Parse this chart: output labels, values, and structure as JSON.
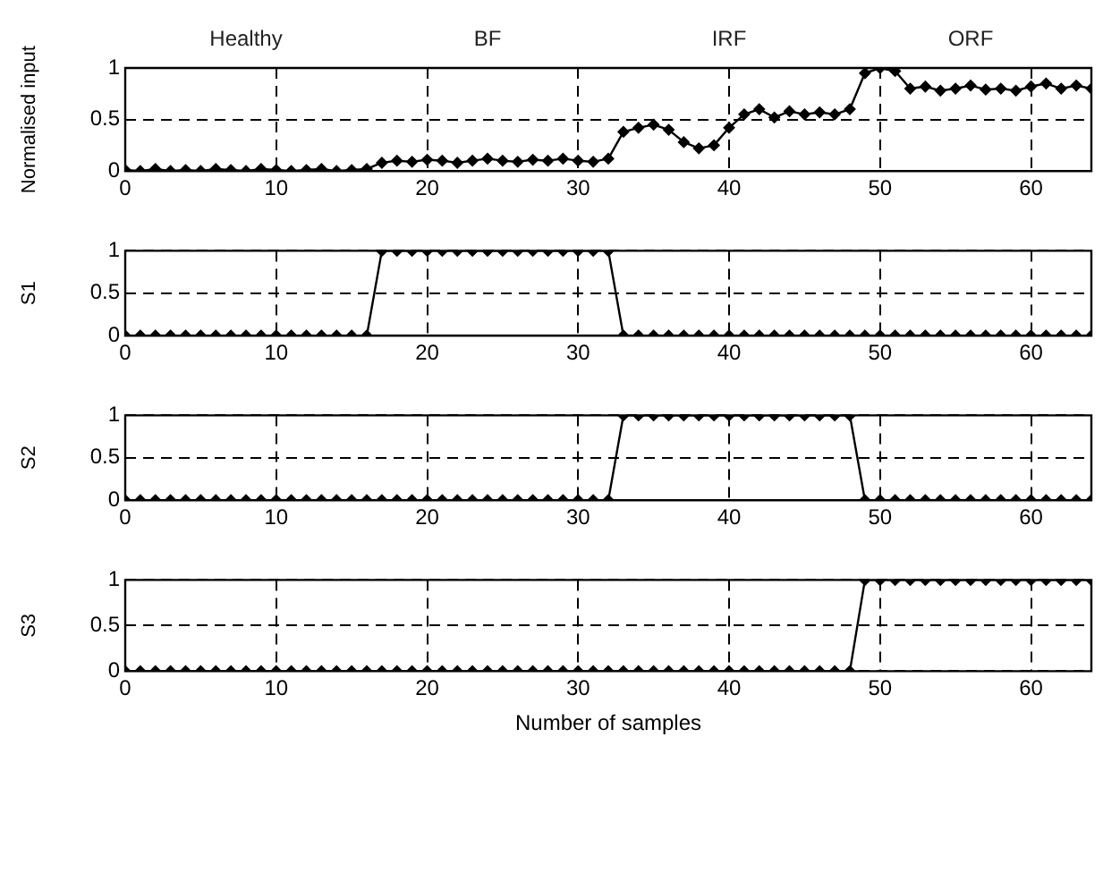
{
  "chart_data": [
    {
      "type": "line",
      "ylabel": "Normalised input",
      "annotations": [
        "Healthy",
        "BF",
        "IRF",
        "ORF"
      ],
      "x": [
        0,
        1,
        2,
        3,
        4,
        5,
        6,
        7,
        8,
        9,
        10,
        11,
        12,
        13,
        14,
        15,
        16,
        17,
        18,
        19,
        20,
        21,
        22,
        23,
        24,
        25,
        26,
        27,
        28,
        29,
        30,
        31,
        32,
        33,
        34,
        35,
        36,
        37,
        38,
        39,
        40,
        41,
        42,
        43,
        44,
        45,
        46,
        47,
        48,
        49,
        50,
        51,
        52,
        53,
        54,
        55,
        56,
        57,
        58,
        59,
        60,
        61,
        62,
        63,
        64
      ],
      "series": [
        {
          "color": "#000000",
          "values": [
            0.01,
            0,
            0.02,
            0,
            0.01,
            0,
            0.02,
            0.01,
            0,
            0.02,
            0.01,
            0,
            0.01,
            0.02,
            0,
            0.01,
            0.02,
            0.08,
            0.1,
            0.09,
            0.11,
            0.1,
            0.08,
            0.1,
            0.12,
            0.1,
            0.09,
            0.11,
            0.1,
            0.12,
            0.1,
            0.09,
            0.12,
            0.38,
            0.42,
            0.45,
            0.4,
            0.28,
            0.22,
            0.25,
            0.42,
            0.55,
            0.6,
            0.52,
            0.58,
            0.55,
            0.57,
            0.55,
            0.6,
            0.95,
            1.0,
            0.97,
            0.8,
            0.82,
            0.78,
            0.8,
            0.83,
            0.79,
            0.8,
            0.78,
            0.82,
            0.85,
            0.8,
            0.83,
            0.8
          ]
        }
      ],
      "xlim": [
        0,
        64
      ],
      "xticks": [
        0,
        10,
        20,
        30,
        40,
        50,
        60
      ],
      "ylim": [
        0,
        1
      ],
      "yticks": [
        0,
        0.5,
        1
      ],
      "grid": true,
      "marker": "diamond"
    },
    {
      "type": "line",
      "ylabel": "S1",
      "x": [
        0,
        1,
        2,
        3,
        4,
        5,
        6,
        7,
        8,
        9,
        10,
        11,
        12,
        13,
        14,
        15,
        16,
        17,
        18,
        19,
        20,
        21,
        22,
        23,
        24,
        25,
        26,
        27,
        28,
        29,
        30,
        31,
        32,
        33,
        34,
        35,
        36,
        37,
        38,
        39,
        40,
        41,
        42,
        43,
        44,
        45,
        46,
        47,
        48,
        49,
        50,
        51,
        52,
        53,
        54,
        55,
        56,
        57,
        58,
        59,
        60,
        61,
        62,
        63,
        64
      ],
      "series": [
        {
          "color": "#000000",
          "values": [
            0,
            0,
            0,
            0,
            0,
            0,
            0,
            0,
            0,
            0,
            0,
            0,
            0,
            0,
            0,
            0,
            0,
            1,
            1,
            1,
            1,
            1,
            1,
            1,
            1,
            1,
            1,
            1,
            1,
            1,
            1,
            1,
            1,
            0,
            0,
            0,
            0,
            0,
            0,
            0,
            0,
            0,
            0,
            0,
            0,
            0,
            0,
            0,
            0,
            0,
            0,
            0,
            0,
            0,
            0,
            0,
            0,
            0,
            0,
            0,
            0,
            0,
            0,
            0,
            0
          ]
        }
      ],
      "xlim": [
        0,
        64
      ],
      "xticks": [
        0,
        10,
        20,
        30,
        40,
        50,
        60
      ],
      "ylim": [
        0,
        1
      ],
      "yticks": [
        0,
        0.5,
        1
      ],
      "grid": true,
      "marker": "diamond"
    },
    {
      "type": "line",
      "ylabel": "S2",
      "x": [
        0,
        1,
        2,
        3,
        4,
        5,
        6,
        7,
        8,
        9,
        10,
        11,
        12,
        13,
        14,
        15,
        16,
        17,
        18,
        19,
        20,
        21,
        22,
        23,
        24,
        25,
        26,
        27,
        28,
        29,
        30,
        31,
        32,
        33,
        34,
        35,
        36,
        37,
        38,
        39,
        40,
        41,
        42,
        43,
        44,
        45,
        46,
        47,
        48,
        49,
        50,
        51,
        52,
        53,
        54,
        55,
        56,
        57,
        58,
        59,
        60,
        61,
        62,
        63,
        64
      ],
      "series": [
        {
          "color": "#000000",
          "values": [
            0,
            0,
            0,
            0,
            0,
            0,
            0,
            0,
            0,
            0,
            0,
            0,
            0,
            0,
            0,
            0,
            0,
            0,
            0,
            0,
            0,
            0,
            0,
            0,
            0,
            0,
            0,
            0,
            0,
            0,
            0,
            0,
            0,
            1,
            1,
            1,
            1,
            1,
            1,
            1,
            1,
            1,
            1,
            1,
            1,
            1,
            1,
            1,
            1,
            0,
            0,
            0,
            0,
            0,
            0,
            0,
            0,
            0,
            0,
            0,
            0,
            0,
            0,
            0,
            0
          ]
        }
      ],
      "xlim": [
        0,
        64
      ],
      "xticks": [
        0,
        10,
        20,
        30,
        40,
        50,
        60
      ],
      "ylim": [
        0,
        1
      ],
      "yticks": [
        0,
        0.5,
        1
      ],
      "grid": true,
      "marker": "diamond"
    },
    {
      "type": "line",
      "ylabel": "S3",
      "xlabel": "Number of samples",
      "x": [
        0,
        1,
        2,
        3,
        4,
        5,
        6,
        7,
        8,
        9,
        10,
        11,
        12,
        13,
        14,
        15,
        16,
        17,
        18,
        19,
        20,
        21,
        22,
        23,
        24,
        25,
        26,
        27,
        28,
        29,
        30,
        31,
        32,
        33,
        34,
        35,
        36,
        37,
        38,
        39,
        40,
        41,
        42,
        43,
        44,
        45,
        46,
        47,
        48,
        49,
        50,
        51,
        52,
        53,
        54,
        55,
        56,
        57,
        58,
        59,
        60,
        61,
        62,
        63,
        64
      ],
      "series": [
        {
          "color": "#000000",
          "values": [
            0,
            0,
            0,
            0,
            0,
            0,
            0,
            0,
            0,
            0,
            0,
            0,
            0,
            0,
            0,
            0,
            0,
            0,
            0,
            0,
            0,
            0,
            0,
            0,
            0,
            0,
            0,
            0,
            0,
            0,
            0,
            0,
            0,
            0,
            0,
            0,
            0,
            0,
            0,
            0,
            0,
            0,
            0,
            0,
            0,
            0,
            0,
            0,
            0,
            1,
            1,
            1,
            1,
            1,
            1,
            1,
            1,
            1,
            1,
            1,
            1,
            1,
            1,
            1,
            1
          ]
        }
      ],
      "xlim": [
        0,
        64
      ],
      "xticks": [
        0,
        10,
        20,
        30,
        40,
        50,
        60
      ],
      "ylim": [
        0,
        1
      ],
      "yticks": [
        0,
        0.5,
        1
      ],
      "grid": true,
      "marker": "diamond"
    }
  ]
}
